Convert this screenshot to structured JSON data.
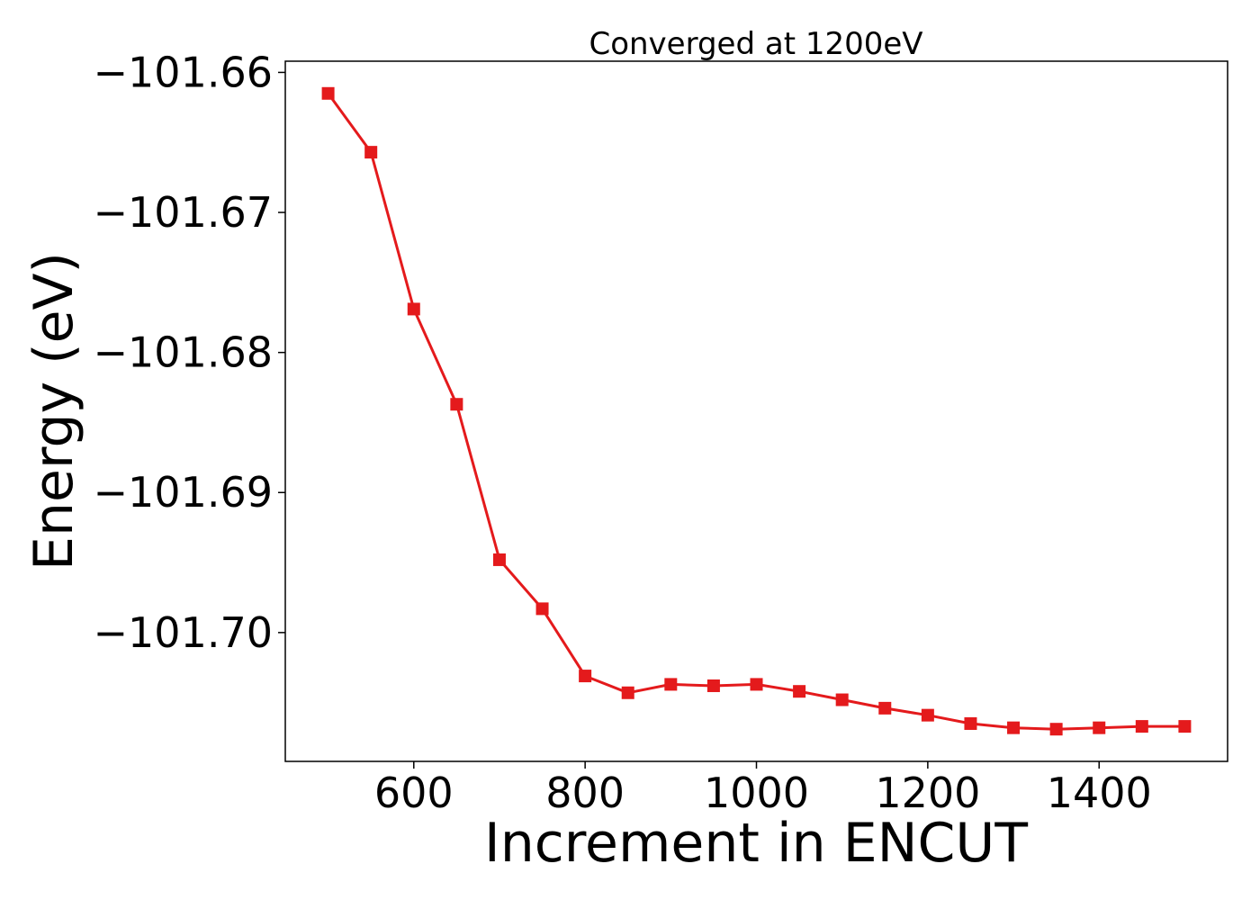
{
  "chart_data": {
    "type": "line",
    "title": "Converged at 1200eV",
    "xlabel": "Increment in ENCUT",
    "ylabel": "Energy (eV)",
    "xlim": [
      450,
      1550
    ],
    "ylim": [
      -101.7092,
      -101.6592
    ],
    "x_ticks": [
      600,
      800,
      1000,
      1200,
      1400
    ],
    "y_ticks": [
      -101.66,
      -101.67,
      -101.68,
      -101.69,
      -101.7
    ],
    "x_tick_labels": [
      "600",
      "800",
      "1000",
      "1200",
      "1400"
    ],
    "y_tick_labels": [
      "−101.66",
      "−101.67",
      "−101.68",
      "−101.69",
      "−101.70"
    ],
    "grid": false,
    "series": [
      {
        "color": "#e41a1c",
        "marker": "square",
        "x": [
          500,
          550,
          600,
          650,
          700,
          750,
          800,
          850,
          900,
          950,
          1000,
          1050,
          1100,
          1150,
          1200,
          1250,
          1300,
          1350,
          1400,
          1450,
          1500
        ],
        "y": [
          -101.6615,
          -101.6657,
          -101.6769,
          -101.6837,
          -101.6948,
          -101.6983,
          -101.7031,
          -101.7043,
          -101.7037,
          -101.7038,
          -101.7037,
          -101.7042,
          -101.7048,
          -101.7054,
          -101.7059,
          -101.7065,
          -101.7068,
          -101.7069,
          -101.7068,
          -101.7067,
          -101.7067
        ]
      }
    ]
  }
}
